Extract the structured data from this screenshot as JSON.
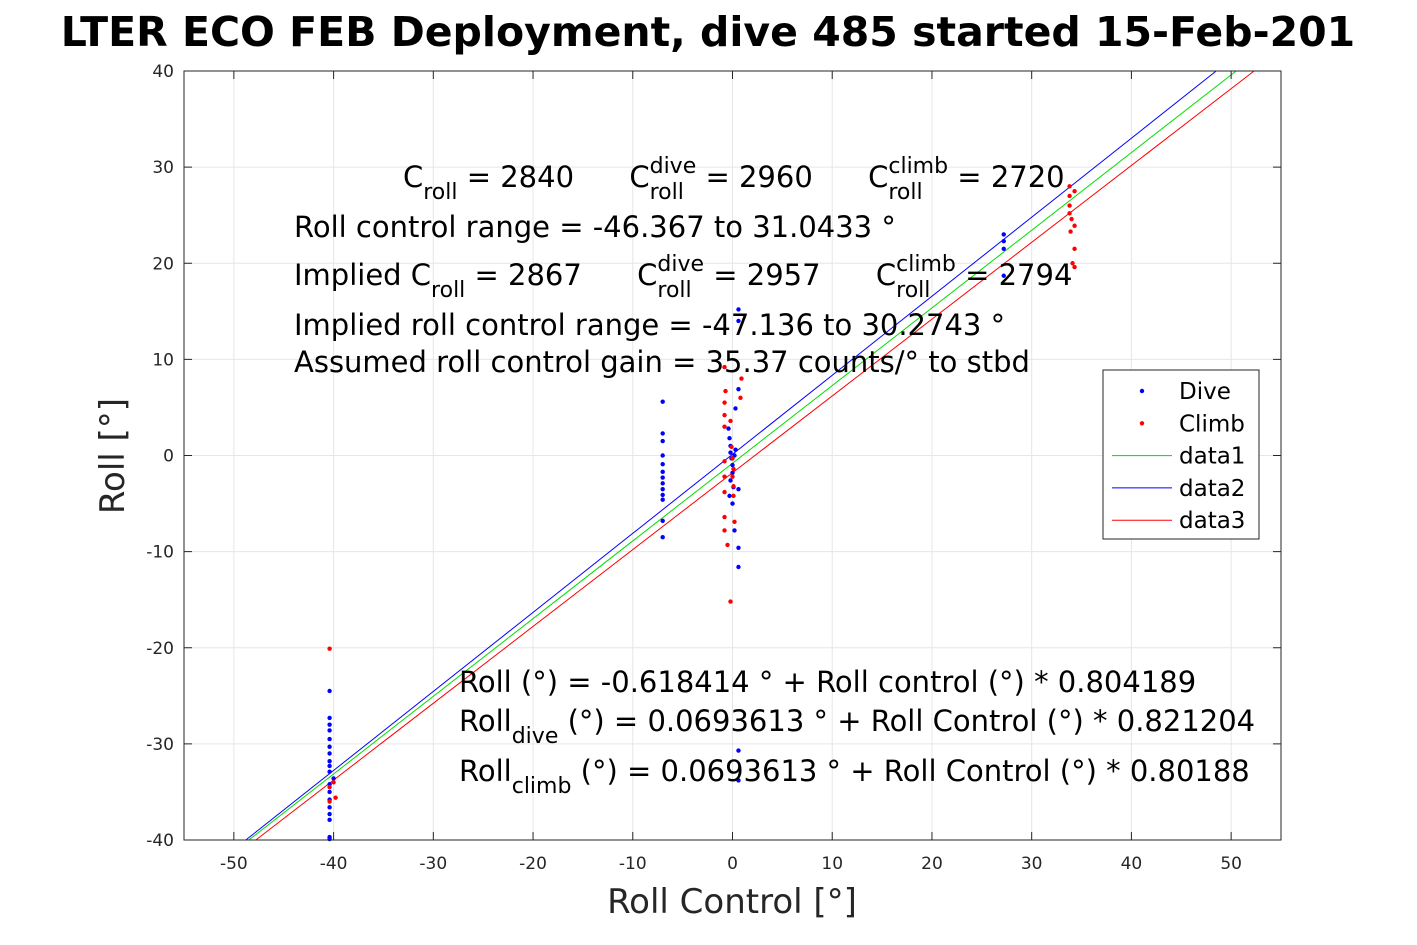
{
  "chart_data": {
    "type": "scatter",
    "title": "LTER ECO FEB Deployment, dive 485 started 15-Feb-201",
    "xlabel": "Roll Control [°]",
    "ylabel": "Roll [°]",
    "xlim": [
      -55,
      55
    ],
    "ylim": [
      -40,
      40
    ],
    "xticks": [
      -50,
      -40,
      -30,
      -20,
      -10,
      0,
      10,
      20,
      30,
      40,
      50
    ],
    "yticks": [
      -40,
      -30,
      -20,
      -10,
      0,
      10,
      20,
      30,
      40
    ],
    "grid": true,
    "legend_position": "right",
    "series": [
      {
        "name": "Dive",
        "kind": "points",
        "color": "#0000ff",
        "points": [
          [
            -40.4,
            -24.5
          ],
          [
            -40.4,
            -27.3
          ],
          [
            -40.4,
            -28.0
          ],
          [
            -40.4,
            -28.6
          ],
          [
            -40.4,
            -29.5
          ],
          [
            -40.4,
            -30.3
          ],
          [
            -40.4,
            -31.0
          ],
          [
            -40.4,
            -31.8
          ],
          [
            -40.4,
            -32.3
          ],
          [
            -40.4,
            -32.9
          ],
          [
            -40.4,
            -34.2
          ],
          [
            -40.4,
            -35.0
          ],
          [
            -40.4,
            -35.8
          ],
          [
            -40.4,
            -36.6
          ],
          [
            -40.4,
            -37.3
          ],
          [
            -40.4,
            -37.9
          ],
          [
            -40.4,
            -39.7
          ],
          [
            -40.4,
            -39.9
          ],
          [
            -40.0,
            -33.6
          ],
          [
            -7.0,
            5.6
          ],
          [
            -7.0,
            2.3
          ],
          [
            -7.0,
            1.5
          ],
          [
            -7.0,
            0.0
          ],
          [
            -7.0,
            -0.9
          ],
          [
            -7.0,
            -1.7
          ],
          [
            -7.0,
            -2.3
          ],
          [
            -7.0,
            -2.9
          ],
          [
            -7.0,
            -3.5
          ],
          [
            -7.0,
            -4.1
          ],
          [
            -7.0,
            -4.6
          ],
          [
            -7.0,
            -6.8
          ],
          [
            -7.0,
            -8.5
          ],
          [
            -0.4,
            2.8
          ],
          [
            -0.3,
            1.8
          ],
          [
            -0.2,
            1.0
          ],
          [
            -0.2,
            0.3
          ],
          [
            -0.1,
            -0.3
          ],
          [
            0.0,
            -1.0
          ],
          [
            0.0,
            -1.8
          ],
          [
            -0.2,
            -2.6
          ],
          [
            0.1,
            -3.3
          ],
          [
            -0.3,
            -4.2
          ],
          [
            0.2,
            0.0
          ],
          [
            0.3,
            4.9
          ],
          [
            0.3,
            0.6
          ],
          [
            0.0,
            -5.0
          ],
          [
            0.2,
            -7.8
          ],
          [
            0.6,
            15.2
          ],
          [
            0.6,
            14.0
          ],
          [
            0.6,
            6.9
          ],
          [
            0.6,
            -3.5
          ],
          [
            0.6,
            -9.6
          ],
          [
            0.6,
            -11.6
          ],
          [
            0.6,
            -30.7
          ],
          [
            0.6,
            -33.8
          ],
          [
            27.2,
            23.0
          ],
          [
            27.2,
            22.3
          ],
          [
            27.2,
            21.5
          ],
          [
            27.2,
            18.7
          ]
        ]
      },
      {
        "name": "Climb",
        "kind": "points",
        "color": "#ff0000",
        "points": [
          [
            -40.4,
            -20.1
          ],
          [
            -40.4,
            -34.5
          ],
          [
            -40.4,
            -36.0
          ],
          [
            -40.0,
            -34.0
          ],
          [
            -39.8,
            -35.6
          ],
          [
            -0.8,
            9.2
          ],
          [
            -0.7,
            6.7
          ],
          [
            -0.8,
            5.5
          ],
          [
            -0.8,
            4.2
          ],
          [
            -0.8,
            3.0
          ],
          [
            -0.8,
            -0.6
          ],
          [
            -0.8,
            -2.2
          ],
          [
            -0.8,
            -3.8
          ],
          [
            -0.8,
            -6.4
          ],
          [
            -0.8,
            -7.8
          ],
          [
            -0.5,
            -9.3
          ],
          [
            -0.2,
            -15.2
          ],
          [
            -0.2,
            3.6
          ],
          [
            -0.1,
            0.9
          ],
          [
            0.0,
            -0.3
          ],
          [
            0.1,
            -1.4
          ],
          [
            0.0,
            -2.2
          ],
          [
            0.1,
            -3.2
          ],
          [
            0.1,
            -4.2
          ],
          [
            0.2,
            -6.9
          ],
          [
            0.9,
            8.0
          ],
          [
            0.8,
            6.0
          ],
          [
            33.8,
            28.0
          ],
          [
            33.8,
            27.0
          ],
          [
            33.8,
            26.0
          ],
          [
            33.8,
            25.2
          ],
          [
            34.0,
            24.6
          ],
          [
            33.9,
            23.3
          ],
          [
            34.3,
            27.5
          ],
          [
            34.3,
            23.9
          ],
          [
            34.3,
            21.5
          ],
          [
            34.1,
            20.0
          ],
          [
            34.3,
            19.6
          ]
        ]
      },
      {
        "name": "data1",
        "kind": "line",
        "color": "#00dd00",
        "x": [
          -48.5,
          50.5
        ],
        "y": [
          -40,
          40
        ]
      },
      {
        "name": "data2",
        "kind": "line",
        "color": "#0000ff",
        "x": [
          -48.8,
          48.5
        ],
        "y": [
          -40,
          40
        ]
      },
      {
        "name": "data3",
        "kind": "line",
        "color": "#ff0000",
        "x": [
          -47.8,
          52.3
        ],
        "y": [
          -40,
          40
        ]
      }
    ],
    "annotations": {
      "line1": [
        {
          "base": "C",
          "sub": "roll",
          "rest": " = 2840"
        },
        {
          "base": "C",
          "sup": "dive",
          "sub": "roll",
          "rest": " = 2960"
        },
        {
          "base": "C",
          "sup": "climb",
          "sub": "roll",
          "rest": " = 2720"
        }
      ],
      "line2": "Roll control range = -46.367 to 31.0433 °",
      "line3": [
        {
          "base": "Implied C",
          "sub": "roll",
          "rest": " = 2867"
        },
        {
          "base": "C",
          "sup": "dive",
          "sub": "roll",
          "rest": " = 2957"
        },
        {
          "base": "C",
          "sup": "climb",
          "sub": "roll",
          "rest": " = 2794"
        }
      ],
      "line4": "Implied roll control range = -47.136 to 30.2743 °",
      "line5": "Assumed roll control gain = 35.37 counts/° to stbd",
      "fit1": {
        "base": "Roll (°) = -0.618414 ° + Roll control (°) * 0.804189"
      },
      "fit2": {
        "base": "Roll",
        "sub": "dive",
        "rest": " (°) = 0.0693613 ° + Roll Control (°) * 0.821204"
      },
      "fit3": {
        "base": "Roll",
        "sub": "climb",
        "rest": " (°) = 0.0693613 ° + Roll Control (°) * 0.80188"
      }
    }
  }
}
